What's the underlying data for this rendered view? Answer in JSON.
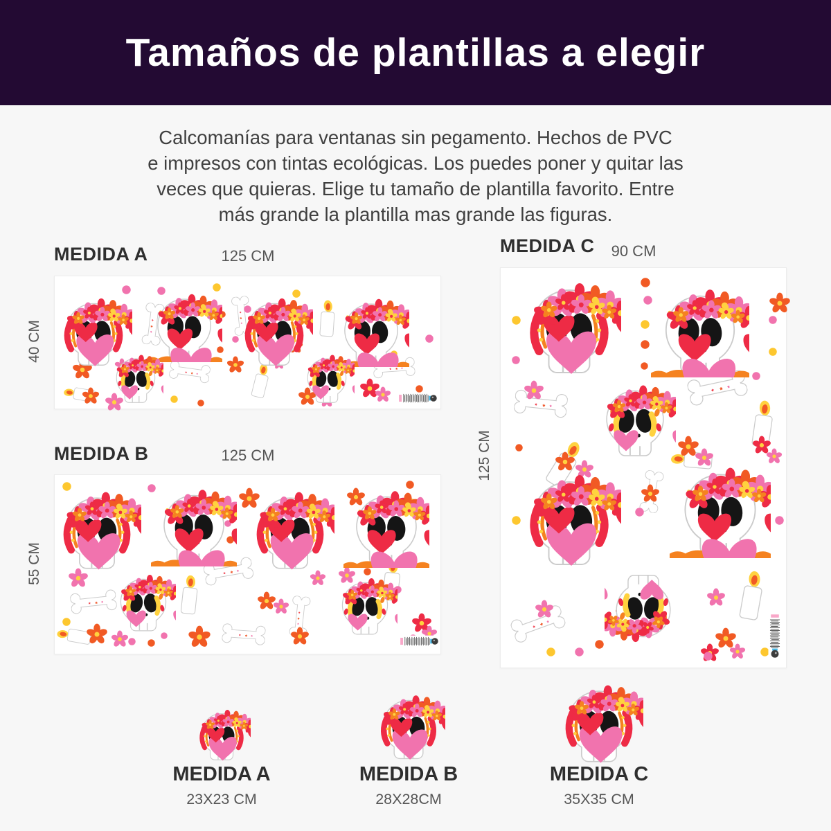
{
  "header": {
    "title": "Tamaños de plantillas a elegir"
  },
  "intro": {
    "lines": [
      "Calcomanías para ventanas sin pegamento. Hechos de PVC",
      "e impresos con tintas ecológicas. Los puedes poner y quitar las",
      "veces que quieras. Elige tu tamaño de plantilla favorito. Entre",
      "más grande la plantilla mas grande las figuras."
    ]
  },
  "sections": {
    "a": {
      "label": "MEDIDA A",
      "width_label": "125 CM",
      "height_label": "40 CM"
    },
    "b": {
      "label": "MEDIDA B",
      "width_label": "125 CM",
      "height_label": "55 CM"
    },
    "c": {
      "label": "MEDIDA C",
      "width_label": "90 CM",
      "height_label": "125 CM"
    }
  },
  "samples": [
    {
      "name": "MEDIDA A",
      "size": "23X23 CM"
    },
    {
      "name": "MEDIDA B",
      "size": "28X28CM"
    },
    {
      "name": "MEDIDA C",
      "size": "35X35 CM"
    }
  ],
  "colors": {
    "header_bg": "#230a33",
    "pink": "#f173ae",
    "red": "#ee2b45",
    "orange": "#f15a24",
    "orange2": "#f58220",
    "yellow": "#fdc72f",
    "yellow2": "#ffd23f",
    "outline": "#c9c9c9"
  },
  "panels": [
    {
      "id": "a",
      "stickers": [
        {
          "t": "bone",
          "x": 25.5,
          "y": 36,
          "s": 60,
          "r": 97
        },
        {
          "t": "bone",
          "x": 48.5,
          "y": 30,
          "s": 56,
          "r": 84
        },
        {
          "t": "bone",
          "x": 35,
          "y": 72,
          "s": 58,
          "r": 8
        },
        {
          "t": "bone",
          "x": 88,
          "y": 69,
          "s": 60,
          "r": -4
        },
        {
          "t": "candle",
          "x": 70.8,
          "y": 32,
          "s": 30,
          "r": 4
        },
        {
          "t": "candle",
          "x": 53.5,
          "y": 79,
          "s": 28,
          "r": 14
        },
        {
          "t": "candle",
          "x": 6.5,
          "y": 89,
          "s": 26,
          "r": -80
        },
        {
          "t": "flower",
          "x": 4.5,
          "y": 63,
          "s": 30,
          "c": "orange"
        },
        {
          "t": "flower",
          "x": 15.5,
          "y": 62,
          "s": 22,
          "c": "pink"
        },
        {
          "t": "flower",
          "x": 7,
          "y": 84,
          "s": 26,
          "c": "orange"
        },
        {
          "t": "flower",
          "x": 13,
          "y": 88,
          "s": 28,
          "c": "pink"
        },
        {
          "t": "flower",
          "x": 44.5,
          "y": 60,
          "s": 26,
          "c": "orange"
        },
        {
          "t": "flower",
          "x": 56.5,
          "y": 61,
          "s": 18,
          "c": "pink"
        },
        {
          "t": "flower",
          "x": 60.5,
          "y": 47,
          "s": 22,
          "c": "orange"
        },
        {
          "t": "flower",
          "x": 63,
          "y": 84,
          "s": 28,
          "c": "orange"
        },
        {
          "t": "flower",
          "x": 68.5,
          "y": 88,
          "s": 22,
          "c": "pink"
        },
        {
          "t": "flower",
          "x": 79,
          "y": 77,
          "s": 30,
          "c": "red"
        },
        {
          "t": "flower",
          "x": 83,
          "y": 83,
          "s": 24,
          "c": "pink"
        },
        {
          "t": "dot",
          "x": 17.5,
          "y": 7,
          "s": 13,
          "c": "pink"
        },
        {
          "t": "dot",
          "x": 26.5,
          "y": 8,
          "s": 12,
          "c": "pink"
        },
        {
          "t": "dot",
          "x": 41,
          "y": 5,
          "s": 12,
          "c": "yellow"
        },
        {
          "t": "dot",
          "x": 42.5,
          "y": 26,
          "s": 10,
          "c": "orange"
        },
        {
          "t": "dot",
          "x": 49,
          "y": 22,
          "s": 11,
          "c": "pink"
        },
        {
          "t": "dot",
          "x": 61.5,
          "y": 10,
          "s": 12,
          "c": "yellow"
        },
        {
          "t": "dot",
          "x": 52,
          "y": 47,
          "s": 11,
          "c": "yellow"
        },
        {
          "t": "dot",
          "x": 46,
          "y": 45,
          "s": 10,
          "c": "pink"
        },
        {
          "t": "dot",
          "x": 42,
          "y": 53,
          "s": 10,
          "c": "orange"
        },
        {
          "t": "dot",
          "x": 96,
          "y": 44,
          "s": 12,
          "c": "pink"
        },
        {
          "t": "dot",
          "x": 93.5,
          "y": 82,
          "s": 11,
          "c": "orange"
        },
        {
          "t": "dot",
          "x": 87,
          "y": 56,
          "s": 10,
          "c": "yellow"
        },
        {
          "t": "dot",
          "x": 30,
          "y": 90,
          "s": 11,
          "c": "yellow"
        },
        {
          "t": "dot",
          "x": 37,
          "y": 93,
          "s": 10,
          "c": "orange"
        },
        {
          "t": "skull-warm",
          "x": 10,
          "y": 40,
          "s": 112
        },
        {
          "t": "skull-curl",
          "x": 33.5,
          "y": 36,
          "s": 110
        },
        {
          "t": "skull-warm",
          "x": 57,
          "y": 40,
          "s": 112
        },
        {
          "t": "skull-curl",
          "x": 82,
          "y": 40,
          "s": 110
        },
        {
          "t": "skull-gold",
          "x": 21,
          "y": 76,
          "s": 80
        },
        {
          "t": "skull-gold",
          "x": 70.5,
          "y": 76,
          "s": 80
        },
        {
          "t": "bc",
          "x": 94,
          "y": 92,
          "s": 56
        }
      ]
    },
    {
      "id": "b",
      "stickers": [
        {
          "t": "bone",
          "x": 10,
          "y": 71,
          "s": 66,
          "r": -6
        },
        {
          "t": "bone",
          "x": 45,
          "y": 54,
          "s": 70,
          "r": -10
        },
        {
          "t": "bone",
          "x": 49,
          "y": 89,
          "s": 62,
          "r": 4
        },
        {
          "t": "bone",
          "x": 63.5,
          "y": 79,
          "s": 58,
          "r": 96
        },
        {
          "t": "candle",
          "x": 35,
          "y": 67,
          "s": 32,
          "r": 6
        },
        {
          "t": "candle",
          "x": 87.5,
          "y": 59,
          "s": 34,
          "r": 6
        },
        {
          "t": "candle",
          "x": 5,
          "y": 90,
          "s": 28,
          "r": -80
        },
        {
          "t": "flower",
          "x": 3.5,
          "y": 52,
          "s": 30,
          "c": "pink"
        },
        {
          "t": "flower",
          "x": 8,
          "y": 83,
          "s": 32,
          "c": "orange"
        },
        {
          "t": "flower",
          "x": 14.5,
          "y": 87,
          "s": 26,
          "c": "pink"
        },
        {
          "t": "flower",
          "x": 47.5,
          "y": 7,
          "s": 32,
          "c": "orange"
        },
        {
          "t": "flower",
          "x": 52.5,
          "y": 65,
          "s": 28,
          "c": "orange"
        },
        {
          "t": "flower",
          "x": 56.5,
          "y": 69,
          "s": 24,
          "c": "pink"
        },
        {
          "t": "flower",
          "x": 61,
          "y": 85,
          "s": 28,
          "c": "orange"
        },
        {
          "t": "flower",
          "x": 66,
          "y": 53,
          "s": 24,
          "c": "pink"
        },
        {
          "t": "flower",
          "x": 73.5,
          "y": 51,
          "s": 26,
          "c": "pink"
        },
        {
          "t": "flower",
          "x": 34.5,
          "y": 84,
          "s": 34,
          "c": "orange"
        },
        {
          "t": "flower",
          "x": 92.5,
          "y": 77,
          "s": 30,
          "c": "red"
        },
        {
          "t": "flower",
          "x": 95,
          "y": 84,
          "s": 24,
          "c": "pink"
        },
        {
          "t": "flower",
          "x": 75.5,
          "y": 7,
          "s": 28,
          "c": "orange"
        },
        {
          "t": "dot",
          "x": 2,
          "y": 4,
          "s": 13,
          "c": "yellow"
        },
        {
          "t": "dot",
          "x": 24,
          "y": 5,
          "s": 12,
          "c": "pink"
        },
        {
          "t": "dot",
          "x": 45,
          "y": 16,
          "s": 10,
          "c": "yellow"
        },
        {
          "t": "dot",
          "x": 44,
          "y": 25,
          "s": 10,
          "c": "pink"
        },
        {
          "t": "dot",
          "x": 44.5,
          "y": 34,
          "s": 11,
          "c": "orange"
        },
        {
          "t": "dot",
          "x": 41.5,
          "y": 43,
          "s": 10,
          "c": "yellow"
        },
        {
          "t": "dot",
          "x": 91,
          "y": 3,
          "s": 12,
          "c": "orange"
        },
        {
          "t": "dot",
          "x": 91.5,
          "y": 13,
          "s": 12,
          "c": "yellow"
        },
        {
          "t": "dot",
          "x": 80,
          "y": 52,
          "s": 11,
          "c": "orange"
        },
        {
          "t": "dot",
          "x": 88,
          "y": 62,
          "s": 11,
          "c": "pink"
        },
        {
          "t": "dot",
          "x": 2,
          "y": 80,
          "s": 12,
          "c": "yellow"
        },
        {
          "t": "dot",
          "x": 19,
          "y": 91,
          "s": 11,
          "c": "pink"
        },
        {
          "t": "dot",
          "x": 24,
          "y": 92,
          "s": 11,
          "c": "orange"
        },
        {
          "t": "dot",
          "x": 27.5,
          "y": 88,
          "s": 10,
          "c": "pink"
        },
        {
          "t": "dot",
          "x": 92,
          "y": 89,
          "s": 11,
          "c": "pink"
        },
        {
          "t": "skull-warm",
          "x": 11,
          "y": 29,
          "s": 128
        },
        {
          "t": "skull-curl",
          "x": 36,
          "y": 27,
          "s": 124
        },
        {
          "t": "skull-warm",
          "x": 61,
          "y": 29,
          "s": 128
        },
        {
          "t": "skull-curl",
          "x": 86,
          "y": 28,
          "s": 124
        },
        {
          "t": "skull-gold",
          "x": 23,
          "y": 70,
          "s": 94
        },
        {
          "t": "skull-gold",
          "x": 80.5,
          "y": 72,
          "s": 94
        },
        {
          "t": "bc",
          "x": 94.5,
          "y": 93,
          "s": 56
        }
      ]
    },
    {
      "id": "c",
      "stickers": [
        {
          "t": "bone",
          "x": 14,
          "y": 34,
          "s": 76,
          "r": 6
        },
        {
          "t": "bone",
          "x": 76,
          "y": 30,
          "s": 84,
          "r": -12
        },
        {
          "t": "bone",
          "x": 53,
          "y": 56,
          "s": 60,
          "r": 100
        },
        {
          "t": "bone",
          "x": 13,
          "y": 89,
          "s": 76,
          "r": -20
        },
        {
          "t": "candle",
          "x": 92,
          "y": 39,
          "s": 38,
          "r": 8
        },
        {
          "t": "candle",
          "x": 22.5,
          "y": 49,
          "s": 40,
          "r": 32
        },
        {
          "t": "candle",
          "x": 67,
          "y": 48,
          "s": 34,
          "r": -85
        },
        {
          "t": "candle",
          "x": 88,
          "y": 82,
          "s": 40,
          "r": 10
        },
        {
          "t": "flower",
          "x": 8,
          "y": 28,
          "s": 30,
          "c": "pink"
        },
        {
          "t": "flower",
          "x": 94,
          "y": 6,
          "s": 32,
          "c": "orange"
        },
        {
          "t": "flower",
          "x": 19,
          "y": 46,
          "s": 30,
          "c": "orange"
        },
        {
          "t": "flower",
          "x": 26,
          "y": 48,
          "s": 28,
          "c": "pink"
        },
        {
          "t": "flower",
          "x": 62,
          "y": 42,
          "s": 32,
          "c": "orange"
        },
        {
          "t": "flower",
          "x": 68,
          "y": 45,
          "s": 28,
          "c": "pink"
        },
        {
          "t": "flower",
          "x": 88,
          "y": 42,
          "s": 28,
          "c": "red"
        },
        {
          "t": "flower",
          "x": 93,
          "y": 45,
          "s": 24,
          "c": "pink"
        },
        {
          "t": "flower",
          "x": 49,
          "y": 54,
          "s": 28,
          "c": "orange"
        },
        {
          "t": "flower",
          "x": 12,
          "y": 83,
          "s": 28,
          "c": "pink"
        },
        {
          "t": "flower",
          "x": 40,
          "y": 84,
          "s": 26,
          "c": "orange"
        },
        {
          "t": "flower",
          "x": 72,
          "y": 80,
          "s": 28,
          "c": "pink"
        },
        {
          "t": "flower",
          "x": 75,
          "y": 90,
          "s": 32,
          "c": "orange"
        },
        {
          "t": "flower",
          "x": 70,
          "y": 94,
          "s": 28,
          "c": "red"
        },
        {
          "t": "flower",
          "x": 80,
          "y": 94,
          "s": 24,
          "c": "pink"
        },
        {
          "t": "dot",
          "x": 49,
          "y": 2.5,
          "s": 14,
          "c": "orange"
        },
        {
          "t": "dot",
          "x": 50,
          "y": 7,
          "s": 13,
          "c": "pink"
        },
        {
          "t": "dot",
          "x": 49,
          "y": 13,
          "s": 13,
          "c": "yellow"
        },
        {
          "t": "dot",
          "x": 49,
          "y": 18,
          "s": 13,
          "c": "orange"
        },
        {
          "t": "dot",
          "x": 49,
          "y": 23.5,
          "s": 11,
          "c": "orange"
        },
        {
          "t": "dot",
          "x": 94,
          "y": 12,
          "s": 12,
          "c": "pink"
        },
        {
          "t": "dot",
          "x": 94,
          "y": 20,
          "s": 12,
          "c": "yellow"
        },
        {
          "t": "dot",
          "x": 88,
          "y": 26,
          "s": 12,
          "c": "pink"
        },
        {
          "t": "dot",
          "x": 4,
          "y": 12,
          "s": 13,
          "c": "yellow"
        },
        {
          "t": "dot",
          "x": 4,
          "y": 22,
          "s": 12,
          "c": "pink"
        },
        {
          "t": "dot",
          "x": 5,
          "y": 44,
          "s": 11,
          "c": "orange"
        },
        {
          "t": "dot",
          "x": 4,
          "y": 62,
          "s": 13,
          "c": "yellow"
        },
        {
          "t": "dot",
          "x": 47,
          "y": 60,
          "s": 13,
          "c": "pink"
        },
        {
          "t": "dot",
          "x": 66,
          "y": 58,
          "s": 13,
          "c": "yellow"
        },
        {
          "t": "dot",
          "x": 96,
          "y": 62,
          "s": 13,
          "c": "pink"
        },
        {
          "t": "dot",
          "x": 33,
          "y": 93,
          "s": 13,
          "c": "orange"
        },
        {
          "t": "dot",
          "x": 26,
          "y": 95,
          "s": 13,
          "c": "pink"
        },
        {
          "t": "dot",
          "x": 16,
          "y": 95,
          "s": 13,
          "c": "yellow"
        },
        {
          "t": "dot",
          "x": 71,
          "y": 96,
          "s": 13,
          "c": "pink"
        },
        {
          "t": "dot",
          "x": 91,
          "y": 95,
          "s": 13,
          "c": "yellow"
        },
        {
          "t": "skull-warm",
          "x": 24,
          "y": 14,
          "s": 150
        },
        {
          "t": "skull-curl",
          "x": 70,
          "y": 15,
          "s": 142
        },
        {
          "t": "skull-gold",
          "x": 47,
          "y": 37.5,
          "s": 118
        },
        {
          "t": "skull-warm",
          "x": 24,
          "y": 62,
          "s": 150
        },
        {
          "t": "skull-curl",
          "x": 77,
          "y": 60,
          "s": 146
        },
        {
          "t": "skull-gold",
          "x": 50,
          "y": 86,
          "s": 112,
          "r": 180
        },
        {
          "t": "bc",
          "x": 96,
          "y": 92,
          "s": 64,
          "r": 90
        }
      ]
    }
  ]
}
